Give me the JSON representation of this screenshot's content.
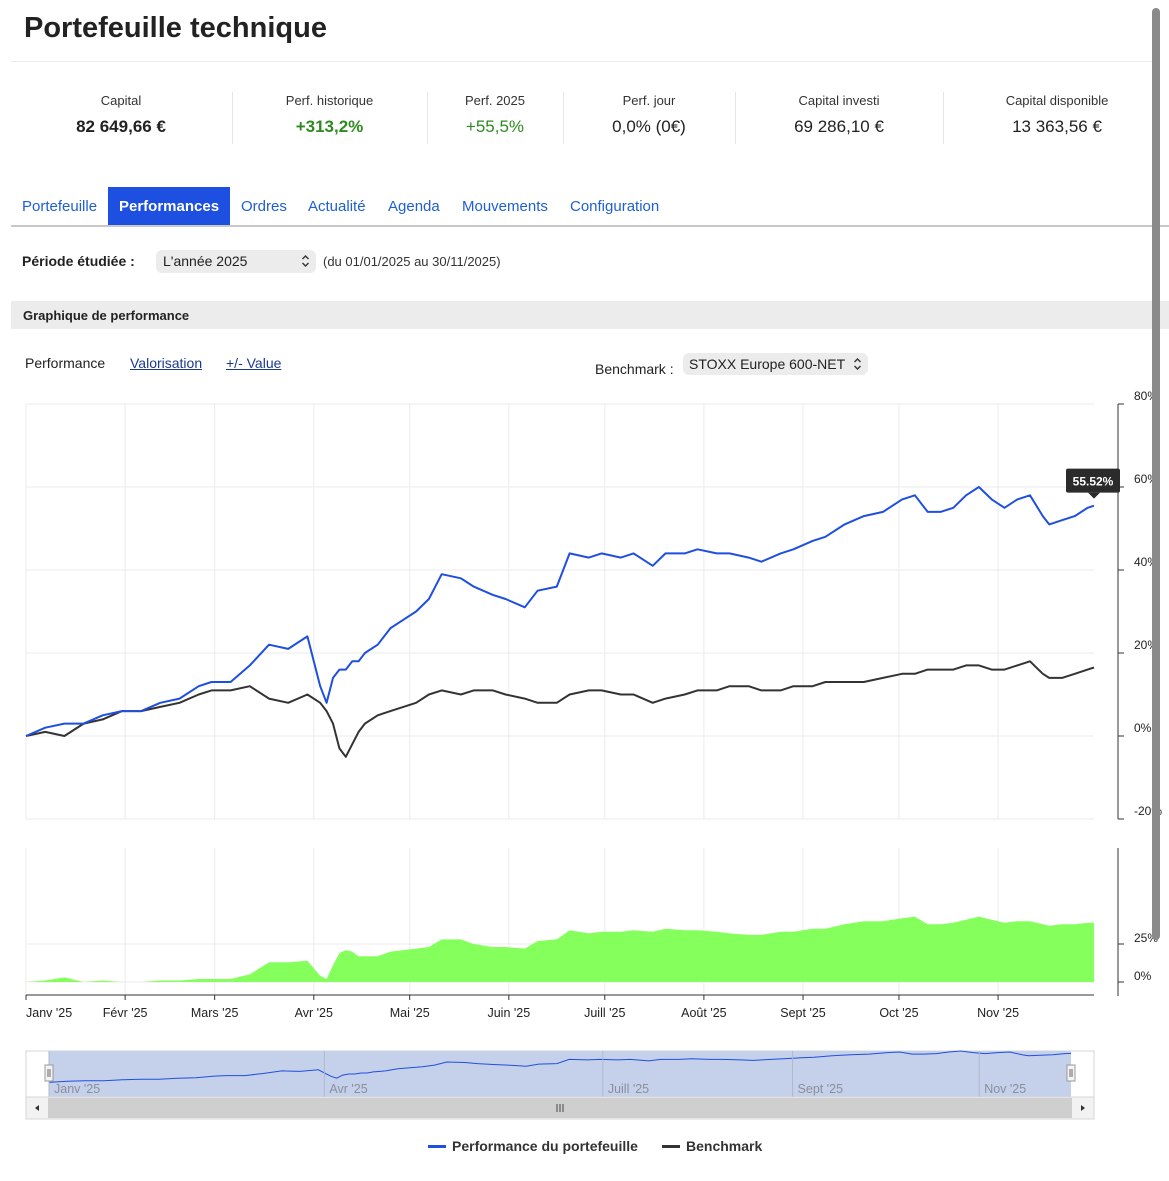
{
  "page": {
    "title": "Portefeuille technique"
  },
  "stats": [
    {
      "label": "Capital",
      "value": "82 649,66 €",
      "style": "bold"
    },
    {
      "label": "Perf. historique",
      "value": "+313,2%",
      "style": "bold green"
    },
    {
      "label": "Perf. 2025",
      "value": "+55,5%",
      "style": "green"
    },
    {
      "label": "Perf. jour",
      "value": "0,0% (0€)",
      "style": ""
    },
    {
      "label": "Capital investi",
      "value": "69 286,10 €",
      "style": ""
    },
    {
      "label": "Capital disponible",
      "value": "13 363,56 €",
      "style": ""
    }
  ],
  "tabs": [
    {
      "label": "Portefeuille",
      "active": false
    },
    {
      "label": "Performances",
      "active": true
    },
    {
      "label": "Ordres",
      "active": false
    },
    {
      "label": "Actualité",
      "active": false
    },
    {
      "label": "Agenda",
      "active": false
    },
    {
      "label": "Mouvements",
      "active": false
    },
    {
      "label": "Configuration",
      "active": false
    }
  ],
  "period": {
    "label": "Période étudiée :",
    "selected": "L'année 2025",
    "range": "(du 01/01/2025 au 30/11/2025)"
  },
  "section": {
    "title": "Graphique de performance"
  },
  "chart_modes": {
    "performance": "Performance",
    "valorisation": "Valorisation",
    "plus_value": "+/- Value"
  },
  "benchmark": {
    "label": "Benchmark :",
    "selected": "STOXX Europe 600-NET"
  },
  "colors": {
    "portfolio": "#1f4fe0",
    "benchmark": "#333333",
    "positive_area": "#84ff5c",
    "negative_area": "#e8461c",
    "tab_active": "#1d4fe0",
    "link": "#1f5fd1",
    "navigator_fill": "#c5d0ea",
    "green_value": "#2e8b1f"
  },
  "chart_data": {
    "type": "line",
    "y_axis": {
      "min": -20,
      "max": 80,
      "ticks": [
        "80%",
        "60%",
        "40%",
        "20%",
        "0%",
        "-20%"
      ]
    },
    "diff_axis": {
      "ticks": [
        "25%",
        "0%"
      ]
    },
    "month_labels": [
      "Janv '25",
      "Févr '25",
      "Mars '25",
      "Avr '25",
      "Mai '25",
      "Juin '25",
      "Juill '25",
      "Août '25",
      "Sept '25",
      "Oct '25",
      "Nov '25"
    ],
    "navigator_labels": [
      "Janv '25",
      "Avr '25",
      "Juill '25",
      "Sept '25",
      "Nov '25"
    ],
    "tooltip": {
      "value": "55.52%"
    },
    "x_days": [
      0,
      6,
      12,
      18,
      24,
      30,
      36,
      42,
      48,
      54,
      58,
      64,
      70,
      76,
      82,
      88,
      92,
      94,
      96,
      98,
      100,
      102,
      104,
      106,
      110,
      114,
      118,
      122,
      126,
      130,
      136,
      140,
      146,
      150,
      156,
      160,
      166,
      170,
      176,
      180,
      186,
      190,
      196,
      200,
      206,
      210,
      216,
      220,
      226,
      230,
      236,
      240,
      246,
      250,
      256,
      262,
      268,
      274,
      278,
      282,
      286,
      290,
      294,
      298,
      302,
      306,
      310,
      314,
      318,
      320,
      324,
      328,
      332,
      334
    ],
    "series": [
      {
        "name": "Performance du portefeuille",
        "values": [
          0,
          2,
          3,
          3,
          5,
          6,
          6,
          8,
          9,
          12,
          13,
          13,
          17,
          22,
          21,
          24,
          12,
          8,
          14,
          16,
          16,
          18,
          18,
          20,
          22,
          26,
          28,
          30,
          33,
          39,
          38,
          36,
          34,
          33,
          31,
          35,
          36,
          44,
          43,
          44,
          43,
          44,
          41,
          44,
          44,
          45,
          44,
          44,
          43,
          42,
          44,
          45,
          47,
          48,
          51,
          53,
          54,
          57,
          58,
          54,
          54,
          55,
          58,
          60,
          57,
          55,
          57,
          58,
          53,
          51,
          52,
          53,
          55,
          55.5
        ],
        "color": "#1f4fe0"
      },
      {
        "name": "Benchmark",
        "values": [
          0,
          1,
          0,
          3,
          4,
          6,
          6,
          7,
          8,
          10,
          11,
          11,
          12,
          9,
          8,
          10,
          8,
          6,
          3,
          -3,
          -5,
          -2,
          1,
          3,
          5,
          6,
          7,
          8,
          10,
          11,
          10,
          11,
          11,
          10,
          9,
          8,
          8,
          10,
          11,
          11,
          10,
          10,
          8,
          9,
          10,
          11,
          11,
          12,
          12,
          11,
          11,
          12,
          12,
          13,
          13,
          13,
          14,
          15,
          15,
          16,
          16,
          16,
          17,
          17,
          16,
          16,
          17,
          18,
          15,
          14,
          14,
          15,
          16,
          16.5
        ],
        "color": "#333333"
      }
    ]
  },
  "legend": [
    {
      "label": "Performance du portefeuille",
      "color": "#1f4fe0"
    },
    {
      "label": "Benchmark",
      "color": "#333333"
    }
  ]
}
